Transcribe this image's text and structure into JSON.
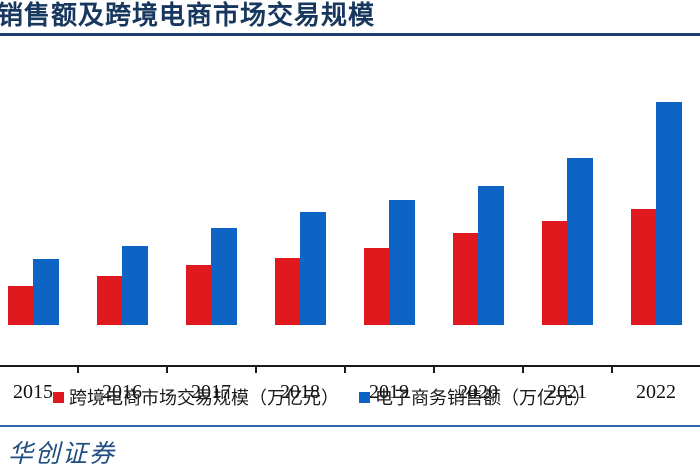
{
  "header": {
    "title": "销售额及跨境电商市场交易规模"
  },
  "chart_data": {
    "type": "bar",
    "title": "销售额及跨境电商市场交易规模",
    "categories": [
      "2015",
      "2016",
      "2017",
      "2018",
      "2019",
      "2020",
      "2021",
      "2022"
    ],
    "series": [
      {
        "name": "跨境电商市场交易规模（万亿元）",
        "color": "#e0191e",
        "values": [
          5.5,
          6.9,
          8.5,
          9.4,
          10.8,
          13.0,
          14.6,
          16.3
        ]
      },
      {
        "name": "电子商务销售额（万亿元）",
        "color": "#0d64c4",
        "values": [
          9.3,
          11.1,
          13.7,
          15.9,
          17.6,
          19.6,
          23.5,
          31.4
        ]
      }
    ],
    "xlabel": "",
    "ylabel": "",
    "ylim": [
      0,
      33
    ],
    "grid": false,
    "legend_position": "bottom",
    "y_axis_visible": false
  },
  "footer": {
    "brand": "华创证券"
  },
  "colors": {
    "title_navy": "#17375e",
    "axis_black": "#1a1a1a",
    "footer_line_blue": "#2c66ab",
    "brand_blue": "#204e80",
    "bar_red": "#e0191e",
    "bar_blue": "#0d64c4"
  }
}
